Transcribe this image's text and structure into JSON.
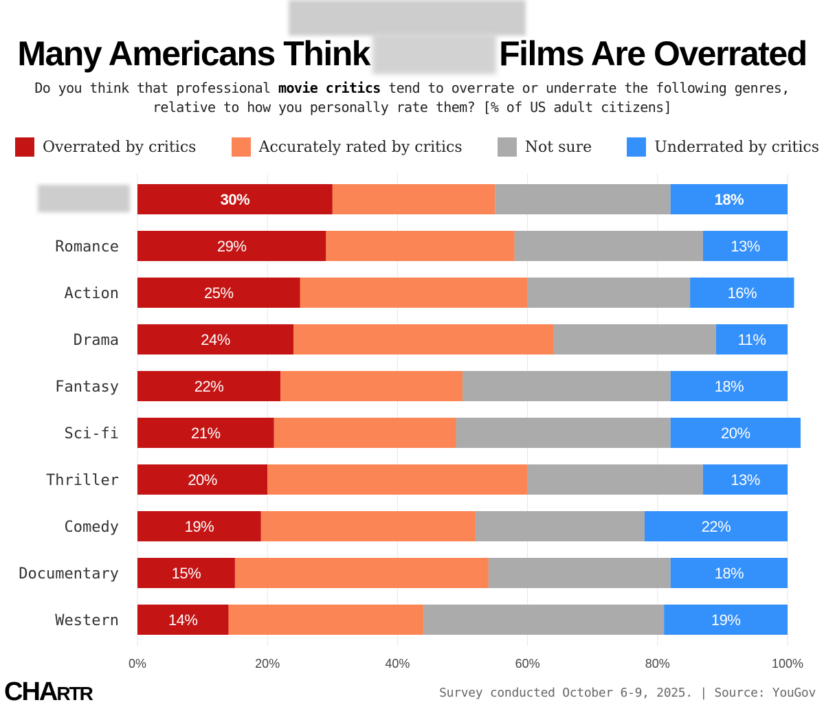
{
  "title_part1": "Many Americans Think",
  "title_part2": "Films Are Overrated",
  "subtitle_pre": "Do you think that professional ",
  "subtitle_bold": "movie critics",
  "subtitle_post": " tend to overrate or underrate the following genres, relative to how you personally rate them? [% of US adult citizens]",
  "legend": [
    {
      "label": "Overrated by critics",
      "color": "#c41414"
    },
    {
      "label": "Accurately rated by critics",
      "color": "#fc8555"
    },
    {
      "label": "Not sure",
      "color": "#ababab"
    },
    {
      "label": "Underrated by critics",
      "color": "#3490fa"
    }
  ],
  "chart_data": {
    "type": "bar",
    "orientation": "horizontal",
    "stacked": true,
    "categories": [
      "",
      "Romance",
      "Action",
      "Drama",
      "Fantasy",
      "Sci-fi",
      "Thriller",
      "Comedy",
      "Documentary",
      "Western"
    ],
    "series": [
      {
        "name": "Overrated by critics",
        "color": "#c41414",
        "values": [
          30,
          29,
          25,
          24,
          22,
          21,
          20,
          19,
          15,
          14
        ]
      },
      {
        "name": "Accurately rated by critics",
        "color": "#fc8555",
        "values": [
          25,
          29,
          35,
          40,
          28,
          28,
          40,
          33,
          39,
          30
        ]
      },
      {
        "name": "Not sure",
        "color": "#ababab",
        "values": [
          27,
          29,
          25,
          25,
          32,
          33,
          27,
          26,
          28,
          37
        ]
      },
      {
        "name": "Underrated by critics",
        "color": "#3490fa",
        "values": [
          18,
          13,
          16,
          11,
          18,
          20,
          13,
          22,
          18,
          19
        ]
      }
    ],
    "value_labels_overrated": [
      "30%",
      "29%",
      "25%",
      "24%",
      "22%",
      "21%",
      "20%",
      "19%",
      "15%",
      "14%"
    ],
    "value_labels_underrated": [
      "18%",
      "13%",
      "16%",
      "11%",
      "18%",
      "20%",
      "13%",
      "22%",
      "18%",
      "19%"
    ],
    "bold_row": 0,
    "xlim": [
      0,
      100
    ],
    "xticks": [
      "0%",
      "20%",
      "40%",
      "60%",
      "80%",
      "100%"
    ],
    "grid": true
  },
  "footer": {
    "logo_main": "CHA",
    "logo_tail": "RTR",
    "source": "Survey conducted October 6-9, 2025. | Source: YouGov"
  }
}
